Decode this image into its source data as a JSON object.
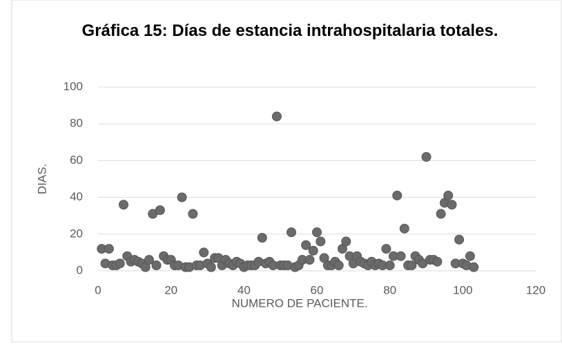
{
  "chart_data": {
    "type": "scatter",
    "title": "Gráfica 15: Días de estancia intrahospitalaria totales.",
    "x_label": "NUMERO DE PACIENTE.",
    "y_label": "DIAS.",
    "color": "#6b6b6b",
    "xlim": [
      0,
      120
    ],
    "xticks": [
      0,
      20,
      40,
      60,
      80,
      100,
      120
    ],
    "ylim": [
      0,
      100
    ],
    "yticks": [
      0,
      20,
      40,
      60,
      80,
      100
    ],
    "grid": true,
    "x": [
      1,
      2,
      3,
      4,
      5,
      6,
      7,
      8,
      9,
      10,
      11,
      12,
      13,
      14,
      15,
      16,
      17,
      18,
      19,
      20,
      21,
      22,
      23,
      24,
      25,
      26,
      27,
      28,
      29,
      30,
      31,
      32,
      33,
      34,
      35,
      36,
      37,
      38,
      39,
      40,
      41,
      42,
      43,
      44,
      45,
      46,
      47,
      48,
      49,
      50,
      51,
      52,
      53,
      54,
      55,
      56,
      57,
      58,
      59,
      60,
      61,
      62,
      63,
      64,
      65,
      66,
      67,
      68,
      69,
      70,
      71,
      72,
      73,
      74,
      75,
      76,
      77,
      78,
      79,
      80,
      81,
      82,
      83,
      84,
      85,
      86,
      87,
      88,
      89,
      90,
      91,
      92,
      93,
      94,
      95,
      96,
      97,
      98,
      99,
      100,
      101,
      102,
      103
    ],
    "values": [
      12,
      4,
      12,
      3,
      3,
      4,
      36,
      8,
      5,
      6,
      5,
      4,
      2,
      6,
      31,
      3,
      33,
      8,
      6,
      6,
      3,
      3,
      40,
      2,
      2,
      31,
      3,
      3,
      10,
      4,
      2,
      7,
      7,
      3,
      6,
      4,
      3,
      5,
      4,
      2,
      3,
      3,
      3,
      5,
      18,
      4,
      5,
      3,
      84,
      3,
      3,
      3,
      21,
      2,
      3,
      6,
      14,
      6,
      11,
      21,
      16,
      7,
      3,
      3,
      5,
      3,
      12,
      16,
      8,
      4,
      8,
      5,
      4,
      3,
      5,
      3,
      4,
      3,
      12,
      3,
      8,
      41,
      8,
      23,
      3,
      3,
      8,
      6,
      4,
      62,
      6,
      6,
      5,
      31,
      37,
      41,
      36,
      4,
      17,
      4,
      3,
      8,
      2
    ]
  }
}
